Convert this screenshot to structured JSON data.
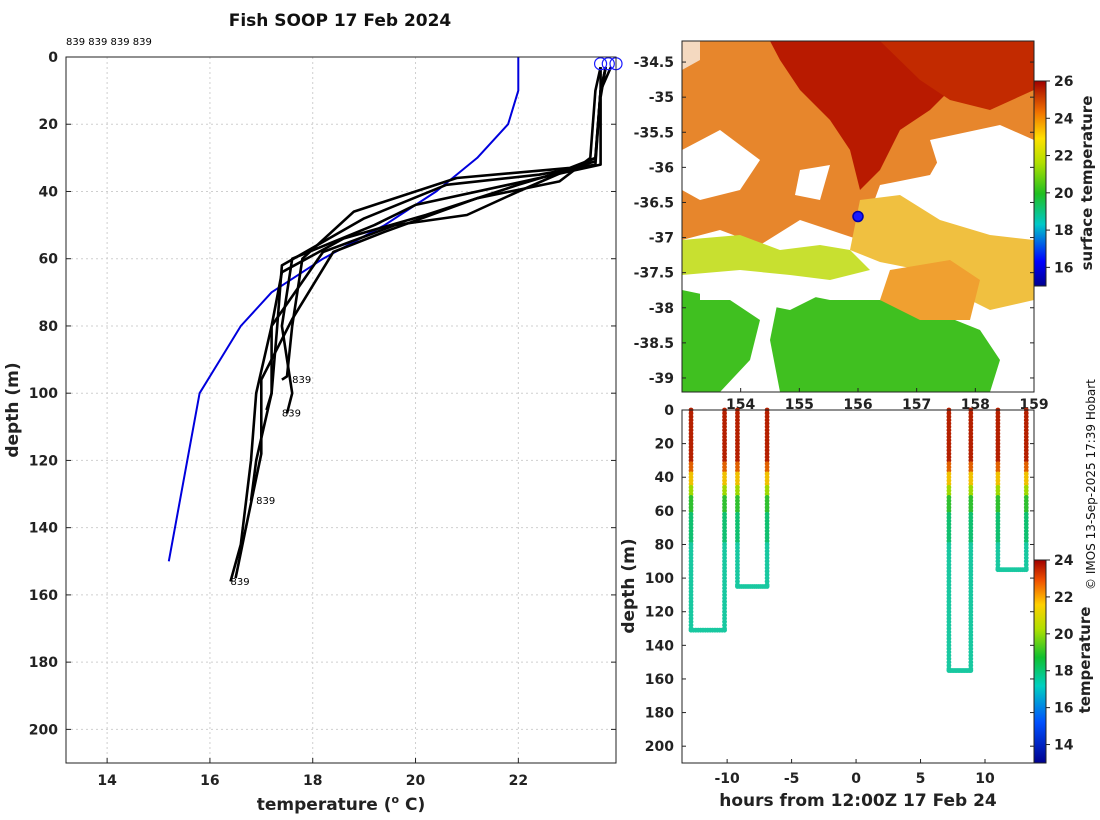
{
  "title": "Fish SOOP 17 Feb 2024",
  "top_annotation": "839 839 839 839",
  "credit": "© IMOS 13-Sep-2025 17:39 Hobart",
  "colors": {
    "profile": "#000000",
    "climatology": "#0000dd",
    "marker": "#1a1aff"
  },
  "chart_data": [
    {
      "id": "profiles",
      "type": "line",
      "xlabel": "temperature (°C)",
      "ylabel": "depth (m)",
      "xlim": [
        13.2,
        23.9
      ],
      "ylim": [
        210,
        0
      ],
      "xticks": [
        14,
        16,
        18,
        20,
        22
      ],
      "yticks": [
        0,
        20,
        40,
        60,
        80,
        100,
        120,
        140,
        160,
        180,
        200
      ],
      "grid": true,
      "series": [
        {
          "name": "climatology",
          "x": [
            22.0,
            22.0,
            21.8,
            21.2,
            20.4,
            19.4,
            18.2,
            17.2,
            16.6,
            16.2,
            15.8,
            15.2
          ],
          "y": [
            0,
            10,
            20,
            30,
            40,
            50,
            60,
            70,
            80,
            90,
            100,
            150
          ]
        },
        {
          "name": "profile 1",
          "x": [
            23.6,
            23.6,
            23.5,
            23.0,
            20.8,
            18.8,
            17.8,
            17.6,
            17.5,
            17.4
          ],
          "y": [
            3,
            10,
            30,
            33,
            36,
            46,
            60,
            80,
            95,
            96
          ]
        },
        {
          "name": "profile 2",
          "x": [
            23.7,
            23.6,
            23.5,
            22.4,
            20.6,
            19.0,
            17.4,
            17.3,
            17.2,
            17.1
          ],
          "y": [
            3,
            10,
            32,
            35,
            38,
            48,
            62,
            82,
            100,
            105
          ]
        },
        {
          "name": "profile 3",
          "x": [
            23.7,
            23.6,
            23.6,
            21.8,
            20.0,
            19.2,
            17.6,
            17.4,
            17.6,
            17.5
          ],
          "y": [
            3,
            12,
            32,
            38,
            44,
            50,
            60,
            80,
            100,
            106
          ]
        },
        {
          "name": "profile 4",
          "x": [
            23.8,
            23.6,
            23.5,
            22.0,
            20.2,
            18.6,
            17.4,
            17.2,
            17.2,
            16.9,
            16.8
          ],
          "y": [
            3,
            10,
            31,
            38,
            47,
            54,
            64,
            80,
            100,
            120,
            132
          ]
        },
        {
          "name": "profile 5",
          "x": [
            23.7,
            23.6,
            23.5,
            22.0,
            21.0,
            19.6,
            18.2,
            17.2,
            16.9,
            16.8,
            16.6,
            16.4
          ],
          "y": [
            3,
            10,
            30,
            40,
            47,
            50,
            58,
            80,
            100,
            120,
            145,
            156
          ]
        },
        {
          "name": "profile 6",
          "x": [
            23.6,
            23.5,
            23.4,
            22.8,
            21.2,
            19.4,
            18.4,
            17.6,
            17.0,
            17.0,
            16.7,
            16.5
          ],
          "y": [
            3,
            10,
            30,
            37,
            42,
            52,
            58,
            78,
            96,
            118,
            140,
            155
          ]
        }
      ],
      "labels": [
        {
          "text": "839",
          "x": 17.6,
          "y": 97
        },
        {
          "text": "839",
          "x": 17.4,
          "y": 107
        },
        {
          "text": "839",
          "x": 16.9,
          "y": 133
        },
        {
          "text": "839",
          "x": 16.4,
          "y": 157
        }
      ],
      "surface_markers_x": [
        23.6,
        23.75,
        23.9
      ]
    },
    {
      "id": "sst-map",
      "type": "heatmap",
      "title": "surface temperature",
      "xlim": [
        153.0,
        159.0
      ],
      "ylim": [
        -39.2,
        -34.2
      ],
      "xticks": [
        154,
        155,
        156,
        157,
        158,
        159
      ],
      "xtick_labels": [
        "154",
        "155",
        "156",
        "157",
        "158",
        "159"
      ],
      "yticks": [
        -34.5,
        -35,
        -35.5,
        -36,
        -36.5,
        -37,
        -37.5,
        -38,
        -38.5,
        -39
      ],
      "ytick_labels": [
        "-34.5",
        "-35",
        "-35.5",
        "-36",
        "-36.5",
        "-37",
        "-37.5",
        "-38",
        "-38.5",
        "-39"
      ],
      "colorbar": {
        "label": "surface temperature",
        "min": 15,
        "max": 26,
        "ticks": [
          16,
          18,
          20,
          22,
          24,
          26
        ]
      },
      "position_marker": {
        "lon": 156.0,
        "lat": -36.7
      }
    },
    {
      "id": "depth-time",
      "type": "scatter",
      "xlabel": "hours from 12:00Z 17 Feb 24",
      "ylabel": "depth (m)",
      "xlim": [
        -13.5,
        13.8
      ],
      "ylim": [
        210,
        0
      ],
      "xticks": [
        -10,
        -5,
        0,
        5,
        10
      ],
      "yticks": [
        0,
        20,
        40,
        60,
        80,
        100,
        120,
        140,
        160,
        180,
        200
      ],
      "colorbar": {
        "label": "temperature",
        "min": 13,
        "max": 24,
        "ticks": [
          14,
          16,
          18,
          20,
          22,
          24
        ]
      },
      "casts": [
        {
          "t_down": -12.8,
          "t_up": -10.2,
          "max_depth": 131
        },
        {
          "t_down": -9.2,
          "t_up": -6.9,
          "max_depth": 105
        },
        {
          "t_down": 7.2,
          "t_up": 8.9,
          "max_depth": 155
        },
        {
          "t_down": 11.0,
          "t_up": 13.2,
          "max_depth": 95
        }
      ]
    }
  ]
}
